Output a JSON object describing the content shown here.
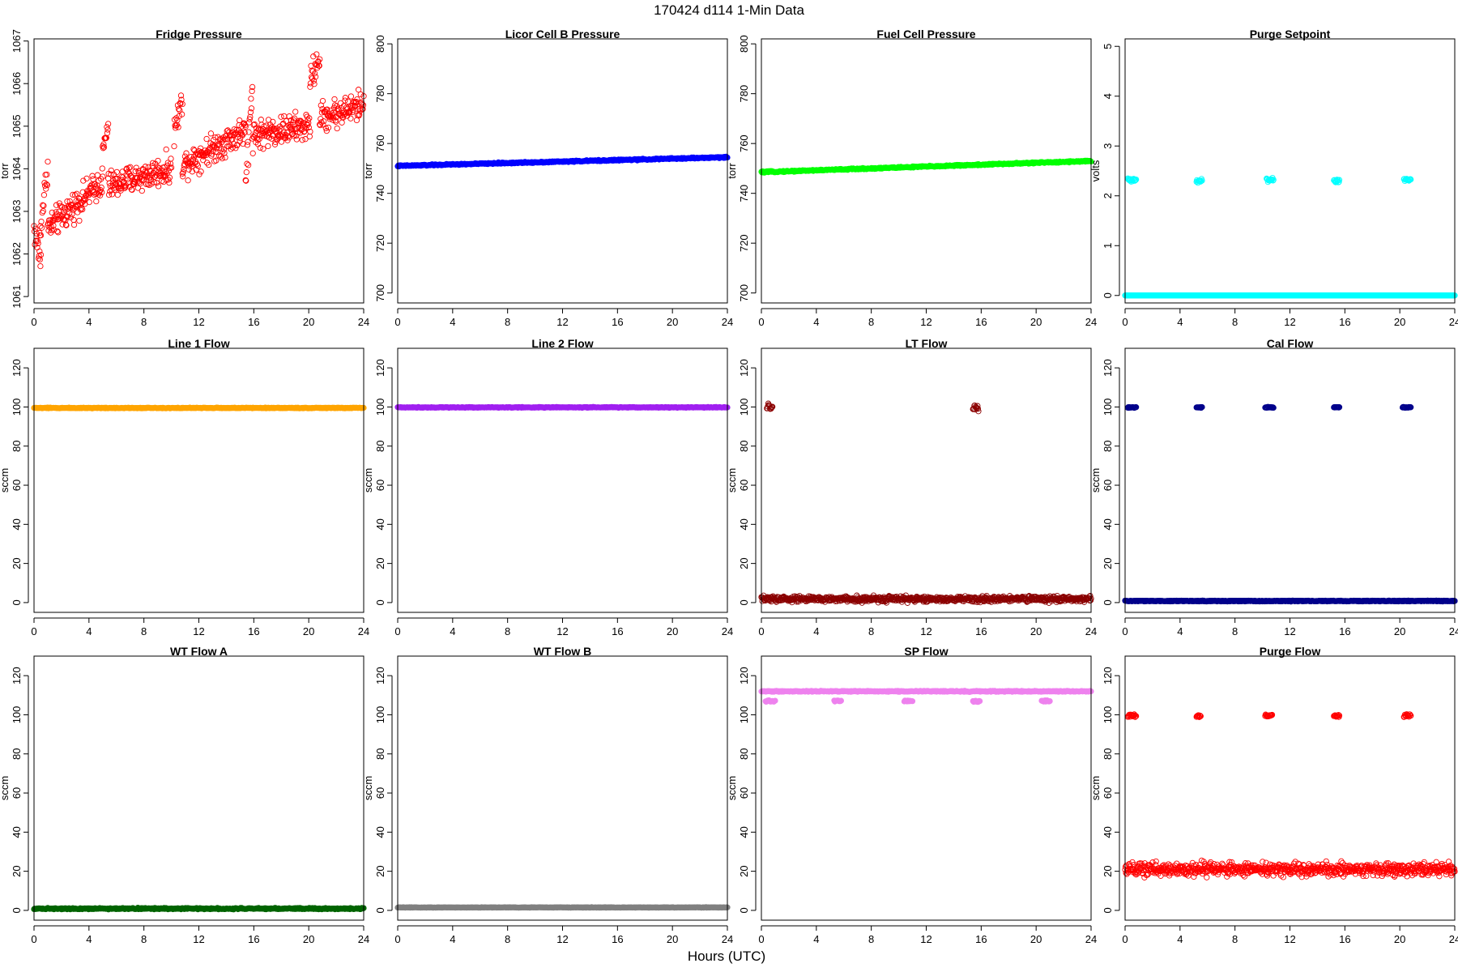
{
  "figure": {
    "title": "170424   d114   1-Min Data",
    "xlabel": "Hours (UTC)"
  },
  "chart_data": [
    {
      "type": "scatter",
      "title": "Fridge Pressure",
      "xlabel": "",
      "ylabel": "torr",
      "xlim": [
        0,
        24
      ],
      "ylim": [
        1060.85,
        1067.05
      ],
      "xticks": [
        0,
        4,
        8,
        12,
        16,
        20,
        24
      ],
      "yticks": [
        1061,
        1062,
        1063,
        1064,
        1065,
        1066,
        1067
      ],
      "ytick_rotation": "vertical",
      "marker": "open-circle",
      "color": "#ff0000",
      "series": [
        {
          "segments": [
            {
              "x0": 0.0,
              "x1": 0.5,
              "y0": 1062.6,
              "y1": 1061.8,
              "spread": 0.5
            },
            {
              "x0": 0.4,
              "x1": 1.0,
              "y0": 1062.4,
              "y1": 1064.1,
              "spread": 0.5
            },
            {
              "x0": 1.0,
              "x1": 5.0,
              "y0": 1062.6,
              "y1": 1063.7,
              "spread": 0.5
            },
            {
              "x0": 5.0,
              "x1": 5.4,
              "y0": 1064.4,
              "y1": 1065.0,
              "spread": 0.4
            },
            {
              "x0": 5.4,
              "x1": 10.0,
              "y0": 1063.6,
              "y1": 1064.0,
              "spread": 0.5
            },
            {
              "x0": 10.2,
              "x1": 10.8,
              "y0": 1064.9,
              "y1": 1065.6,
              "spread": 0.5
            },
            {
              "x0": 10.8,
              "x1": 15.4,
              "y0": 1064.1,
              "y1": 1064.9,
              "spread": 0.5
            },
            {
              "x0": 15.4,
              "x1": 15.9,
              "y0": 1063.6,
              "y1": 1066.0,
              "spread": 0.7
            },
            {
              "x0": 15.9,
              "x1": 20.1,
              "y0": 1064.8,
              "y1": 1065.0,
              "spread": 0.5
            },
            {
              "x0": 20.1,
              "x1": 20.8,
              "y0": 1066.1,
              "y1": 1066.6,
              "spread": 0.5
            },
            {
              "x0": 20.8,
              "x1": 24.0,
              "y0": 1065.2,
              "y1": 1065.5,
              "spread": 0.5
            }
          ]
        }
      ]
    },
    {
      "type": "scatter",
      "title": "Licor Cell B Pressure",
      "xlabel": "",
      "ylabel": "torr",
      "xlim": [
        0,
        24
      ],
      "ylim": [
        696,
        802
      ],
      "xticks": [
        0,
        4,
        8,
        12,
        16,
        20,
        24
      ],
      "yticks": [
        700,
        720,
        740,
        760,
        780,
        800
      ],
      "ytick_rotation": "vertical",
      "marker": "filled-circle",
      "color": "#0000ff",
      "series": [
        {
          "segments": [
            {
              "x0": 0,
              "x1": 24,
              "y0": 751.0,
              "y1": 754.5,
              "spread": 0.4
            }
          ]
        }
      ]
    },
    {
      "type": "scatter",
      "title": "Fuel Cell Pressure",
      "xlabel": "",
      "ylabel": "torr",
      "xlim": [
        0,
        24
      ],
      "ylim": [
        696,
        802
      ],
      "xticks": [
        0,
        4,
        8,
        12,
        16,
        20,
        24
      ],
      "yticks": [
        700,
        720,
        740,
        760,
        780,
        800
      ],
      "ytick_rotation": "vertical",
      "marker": "filled-circle",
      "color": "#00ff00",
      "series": [
        {
          "segments": [
            {
              "x0": 0,
              "x1": 24,
              "y0": 748.5,
              "y1": 753.0,
              "spread": 0.4
            }
          ]
        }
      ]
    },
    {
      "type": "scatter",
      "title": "Purge Setpoint",
      "xlabel": "",
      "ylabel": "volts",
      "xlim": [
        0,
        24
      ],
      "ylim": [
        -0.15,
        5.15
      ],
      "xticks": [
        0,
        4,
        8,
        12,
        16,
        20,
        24
      ],
      "yticks": [
        0,
        1,
        2,
        3,
        4,
        5
      ],
      "ytick_rotation": "vertical",
      "marker": "open-circle",
      "color": "#00ffff",
      "series": [
        {
          "segments": [
            {
              "x0": 0,
              "x1": 24,
              "y0": 0.0,
              "y1": 0.0,
              "spread": 0.0
            },
            {
              "x0": 0.2,
              "x1": 0.8,
              "y0": 2.32,
              "y1": 2.32,
              "spread": 0.05
            },
            {
              "x0": 5.2,
              "x1": 5.6,
              "y0": 2.3,
              "y1": 2.3,
              "spread": 0.05
            },
            {
              "x0": 10.3,
              "x1": 10.8,
              "y0": 2.32,
              "y1": 2.32,
              "spread": 0.05
            },
            {
              "x0": 15.2,
              "x1": 15.6,
              "y0": 2.3,
              "y1": 2.3,
              "spread": 0.05
            },
            {
              "x0": 20.3,
              "x1": 20.8,
              "y0": 2.32,
              "y1": 2.32,
              "spread": 0.05
            }
          ]
        }
      ]
    },
    {
      "type": "scatter",
      "title": "Line 1 Flow",
      "xlabel": "",
      "ylabel": "sccm",
      "xlim": [
        0,
        24
      ],
      "ylim": [
        -5,
        130
      ],
      "xticks": [
        0,
        4,
        8,
        12,
        16,
        20,
        24
      ],
      "yticks": [
        0,
        20,
        40,
        60,
        80,
        100,
        120
      ],
      "ytick_rotation": "vertical",
      "marker": "filled-circle",
      "color": "#ffa500",
      "series": [
        {
          "segments": [
            {
              "x0": 0,
              "x1": 24,
              "y0": 99.5,
              "y1": 99.5,
              "spread": 0.3
            }
          ]
        }
      ]
    },
    {
      "type": "scatter",
      "title": "Line 2 Flow",
      "xlabel": "",
      "ylabel": "sccm",
      "xlim": [
        0,
        24
      ],
      "ylim": [
        -5,
        130
      ],
      "xticks": [
        0,
        4,
        8,
        12,
        16,
        20,
        24
      ],
      "yticks": [
        0,
        20,
        40,
        60,
        80,
        100,
        120
      ],
      "ytick_rotation": "vertical",
      "marker": "filled-circle",
      "color": "#a020f0",
      "series": [
        {
          "segments": [
            {
              "x0": 0,
              "x1": 24,
              "y0": 99.8,
              "y1": 99.8,
              "spread": 0.3
            }
          ]
        }
      ]
    },
    {
      "type": "scatter",
      "title": "LT Flow",
      "xlabel": "",
      "ylabel": "sccm",
      "xlim": [
        0,
        24
      ],
      "ylim": [
        -5,
        130
      ],
      "xticks": [
        0,
        4,
        8,
        12,
        16,
        20,
        24
      ],
      "yticks": [
        0,
        20,
        40,
        60,
        80,
        100,
        120
      ],
      "ytick_rotation": "vertical",
      "marker": "open-circle",
      "color": "#8b0000",
      "series": [
        {
          "segments": [
            {
              "x0": 0,
              "x1": 24,
              "y0": 1.8,
              "y1": 1.8,
              "spread": 2.2
            },
            {
              "x0": 0.4,
              "x1": 0.8,
              "y0": 100.0,
              "y1": 100.0,
              "spread": 2.0
            },
            {
              "x0": 15.4,
              "x1": 15.8,
              "y0": 99.5,
              "y1": 99.5,
              "spread": 2.0
            }
          ]
        }
      ]
    },
    {
      "type": "scatter",
      "title": "Cal Flow",
      "xlabel": "",
      "ylabel": "sccm",
      "xlim": [
        0,
        24
      ],
      "ylim": [
        -5,
        130
      ],
      "xticks": [
        0,
        4,
        8,
        12,
        16,
        20,
        24
      ],
      "yticks": [
        0,
        20,
        40,
        60,
        80,
        100,
        120
      ],
      "ytick_rotation": "vertical",
      "marker": "open-circle",
      "color": "#00008b",
      "series": [
        {
          "segments": [
            {
              "x0": 0,
              "x1": 24,
              "y0": 0.8,
              "y1": 0.8,
              "spread": 0.3
            },
            {
              "x0": 0.2,
              "x1": 0.8,
              "y0": 99.8,
              "y1": 99.8,
              "spread": 0.3
            },
            {
              "x0": 5.2,
              "x1": 5.6,
              "y0": 99.8,
              "y1": 99.8,
              "spread": 0.3
            },
            {
              "x0": 10.2,
              "x1": 10.8,
              "y0": 99.8,
              "y1": 99.8,
              "spread": 0.3
            },
            {
              "x0": 15.2,
              "x1": 15.6,
              "y0": 99.8,
              "y1": 99.8,
              "spread": 0.3
            },
            {
              "x0": 20.2,
              "x1": 20.8,
              "y0": 99.8,
              "y1": 99.8,
              "spread": 0.3
            }
          ]
        }
      ]
    },
    {
      "type": "scatter",
      "title": "WT Flow A",
      "xlabel": "",
      "ylabel": "sccm",
      "xlim": [
        0,
        24
      ],
      "ylim": [
        -5,
        130
      ],
      "xticks": [
        0,
        4,
        8,
        12,
        16,
        20,
        24
      ],
      "yticks": [
        0,
        20,
        40,
        60,
        80,
        100,
        120
      ],
      "ytick_rotation": "vertical",
      "marker": "filled-circle",
      "color": "#006400",
      "series": [
        {
          "segments": [
            {
              "x0": 0,
              "x1": 24,
              "y0": 0.9,
              "y1": 0.9,
              "spread": 0.5
            }
          ]
        }
      ]
    },
    {
      "type": "scatter",
      "title": "WT Flow B",
      "xlabel": "",
      "ylabel": "sccm",
      "xlim": [
        0,
        24
      ],
      "ylim": [
        -5,
        130
      ],
      "xticks": [
        0,
        4,
        8,
        12,
        16,
        20,
        24
      ],
      "yticks": [
        0,
        20,
        40,
        60,
        80,
        100,
        120
      ],
      "ytick_rotation": "vertical",
      "marker": "filled-circle",
      "color": "#808080",
      "series": [
        {
          "segments": [
            {
              "x0": 0,
              "x1": 24,
              "y0": 1.5,
              "y1": 1.5,
              "spread": 0.2
            }
          ]
        }
      ]
    },
    {
      "type": "scatter",
      "title": "SP Flow",
      "xlabel": "",
      "ylabel": "sccm",
      "xlim": [
        0,
        24
      ],
      "ylim": [
        -5,
        130
      ],
      "xticks": [
        0,
        4,
        8,
        12,
        16,
        20,
        24
      ],
      "yticks": [
        0,
        20,
        40,
        60,
        80,
        100,
        120
      ],
      "ytick_rotation": "vertical",
      "marker": "filled-circle",
      "color": "#ee82ee",
      "series": [
        {
          "segments": [
            {
              "x0": 0,
              "x1": 24,
              "y0": 112.0,
              "y1": 112.0,
              "spread": 0.4
            },
            {
              "x0": 0.3,
              "x1": 1.0,
              "y0": 107.0,
              "y1": 107.0,
              "spread": 1.0
            },
            {
              "x0": 5.3,
              "x1": 5.8,
              "y0": 107.0,
              "y1": 107.0,
              "spread": 0.5
            },
            {
              "x0": 10.4,
              "x1": 11.0,
              "y0": 107.0,
              "y1": 107.0,
              "spread": 0.5
            },
            {
              "x0": 15.4,
              "x1": 15.9,
              "y0": 106.5,
              "y1": 106.5,
              "spread": 1.0
            },
            {
              "x0": 20.4,
              "x1": 21.0,
              "y0": 107.0,
              "y1": 107.0,
              "spread": 0.5
            }
          ]
        }
      ]
    },
    {
      "type": "scatter",
      "title": "Purge Flow",
      "xlabel": "",
      "ylabel": "sccm",
      "xlim": [
        0,
        24
      ],
      "ylim": [
        -5,
        130
      ],
      "xticks": [
        0,
        4,
        8,
        12,
        16,
        20,
        24
      ],
      "yticks": [
        0,
        20,
        40,
        60,
        80,
        100,
        120
      ],
      "ytick_rotation": "vertical",
      "marker": "open-circle",
      "color": "#ff0000",
      "series": [
        {
          "segments": [
            {
              "x0": 0,
              "x1": 24,
              "y0": 21.0,
              "y1": 21.0,
              "spread": 5.0
            },
            {
              "x0": 0.2,
              "x1": 0.8,
              "y0": 99.5,
              "y1": 99.5,
              "spread": 1.0
            },
            {
              "x0": 5.2,
              "x1": 5.5,
              "y0": 99.5,
              "y1": 99.5,
              "spread": 1.0
            },
            {
              "x0": 10.2,
              "x1": 10.7,
              "y0": 99.5,
              "y1": 99.5,
              "spread": 1.0
            },
            {
              "x0": 15.2,
              "x1": 15.6,
              "y0": 99.5,
              "y1": 99.5,
              "spread": 1.0
            },
            {
              "x0": 20.3,
              "x1": 20.8,
              "y0": 99.5,
              "y1": 99.5,
              "spread": 1.0
            }
          ]
        }
      ]
    }
  ]
}
